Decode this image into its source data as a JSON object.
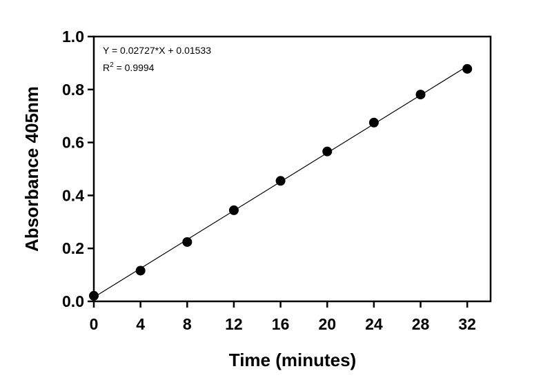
{
  "chart_data": {
    "type": "scatter",
    "title": "",
    "xlabel": "Time (minutes)",
    "ylabel": "Absorbance 405nm",
    "xlim": [
      0,
      34
    ],
    "ylim": [
      0,
      1.0
    ],
    "x_ticks": [
      "0",
      "4",
      "8",
      "12",
      "16",
      "20",
      "24",
      "28",
      "32"
    ],
    "y_ticks": [
      "0.0",
      "0.2",
      "0.4",
      "0.6",
      "0.8",
      "1.0"
    ],
    "grid": false,
    "legend": "none",
    "series": [
      {
        "x": [
          0,
          4,
          8,
          12,
          16,
          20,
          24,
          28,
          32
        ],
        "y": [
          0.021,
          0.116,
          0.224,
          0.344,
          0.455,
          0.566,
          0.675,
          0.781,
          0.878
        ],
        "color": "#000000",
        "marker": "circle"
      }
    ],
    "fit_line": {
      "slope": 0.02727,
      "intercept": 0.01533,
      "x_range": [
        0,
        32
      ],
      "color": "#000000"
    },
    "annotations": {
      "equation": "Y = 0.02727*X + 0.01533",
      "r2_prefix": "R",
      "r2_sup": "2",
      "r2_value": " = 0.9994"
    }
  }
}
